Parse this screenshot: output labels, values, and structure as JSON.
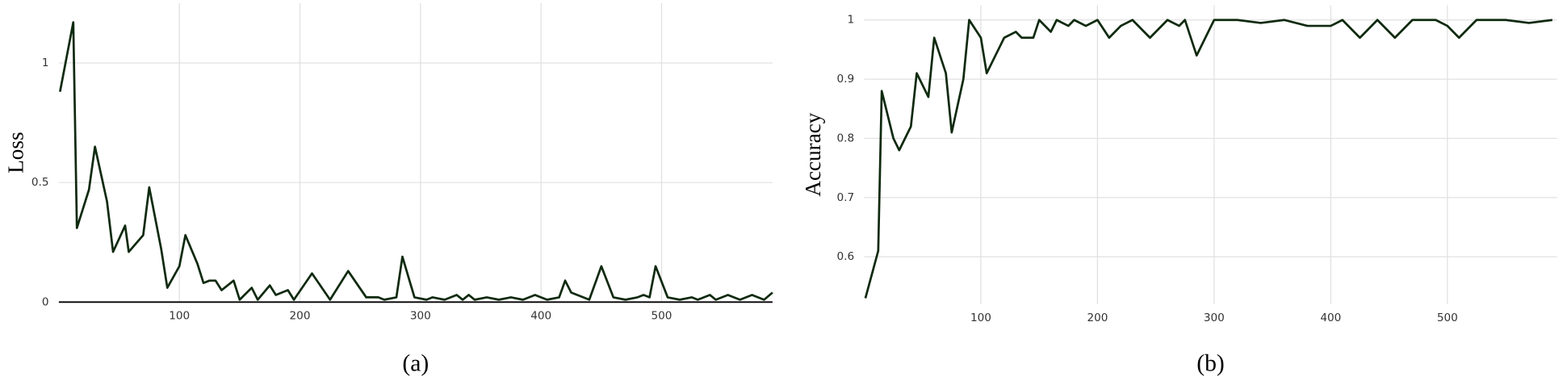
{
  "chart_data": [
    {
      "type": "line",
      "ylabel": "Loss",
      "caption": "(a)",
      "color": "#0f2a0f",
      "grid": true,
      "xlim": [
        0,
        592
      ],
      "ylim": [
        0,
        1.25
      ],
      "xticks": [
        100,
        200,
        300,
        400,
        500
      ],
      "yticks": [
        0,
        0.5,
        1
      ],
      "x": [
        1,
        12,
        15,
        25,
        30,
        40,
        45,
        55,
        58,
        70,
        75,
        85,
        90,
        100,
        105,
        115,
        120,
        125,
        130,
        135,
        145,
        150,
        160,
        165,
        175,
        180,
        190,
        195,
        210,
        225,
        240,
        255,
        265,
        270,
        280,
        285,
        295,
        305,
        310,
        320,
        330,
        335,
        340,
        345,
        355,
        365,
        375,
        385,
        395,
        405,
        415,
        420,
        425,
        435,
        440,
        450,
        460,
        470,
        480,
        485,
        490,
        495,
        505,
        515,
        525,
        530,
        540,
        545,
        555,
        565,
        575,
        585,
        592
      ],
      "values": [
        0.88,
        1.17,
        0.31,
        0.47,
        0.65,
        0.42,
        0.21,
        0.32,
        0.21,
        0.28,
        0.48,
        0.22,
        0.06,
        0.15,
        0.28,
        0.16,
        0.08,
        0.09,
        0.09,
        0.05,
        0.09,
        0.01,
        0.06,
        0.01,
        0.07,
        0.03,
        0.05,
        0.01,
        0.12,
        0.01,
        0.13,
        0.02,
        0.02,
        0.01,
        0.02,
        0.19,
        0.02,
        0.01,
        0.02,
        0.01,
        0.03,
        0.01,
        0.03,
        0.01,
        0.02,
        0.01,
        0.02,
        0.01,
        0.03,
        0.01,
        0.02,
        0.09,
        0.04,
        0.02,
        0.01,
        0.15,
        0.02,
        0.01,
        0.02,
        0.03,
        0.02,
        0.15,
        0.02,
        0.01,
        0.02,
        0.01,
        0.03,
        0.01,
        0.03,
        0.01,
        0.03,
        0.01,
        0.04
      ]
    },
    {
      "type": "line",
      "ylabel": "Accuracy",
      "caption": "(b)",
      "color": "#0f2a0f",
      "grid": true,
      "xlim": [
        0,
        594
      ],
      "ylim": [
        0.52,
        1.025
      ],
      "xticks": [
        100,
        200,
        300,
        400,
        500
      ],
      "yticks": [
        0.6,
        0.7,
        0.8,
        0.9,
        1
      ],
      "x": [
        1,
        12,
        15,
        25,
        30,
        40,
        45,
        55,
        60,
        70,
        75,
        85,
        90,
        100,
        105,
        115,
        120,
        130,
        135,
        145,
        150,
        160,
        165,
        175,
        180,
        190,
        200,
        210,
        220,
        230,
        245,
        260,
        270,
        275,
        285,
        295,
        300,
        320,
        340,
        360,
        380,
        400,
        410,
        425,
        440,
        455,
        470,
        490,
        500,
        510,
        525,
        550,
        570,
        590
      ],
      "values": [
        0.53,
        0.61,
        0.88,
        0.8,
        0.78,
        0.82,
        0.91,
        0.87,
        0.97,
        0.91,
        0.81,
        0.9,
        1.0,
        0.97,
        0.91,
        0.95,
        0.97,
        0.98,
        0.97,
        0.97,
        1.0,
        0.98,
        1.0,
        0.99,
        1.0,
        0.99,
        1.0,
        0.97,
        0.99,
        1.0,
        0.97,
        1.0,
        0.99,
        1.0,
        0.94,
        0.98,
        1.0,
        1.0,
        0.995,
        1.0,
        0.99,
        0.99,
        1.0,
        0.97,
        1.0,
        0.97,
        1.0,
        1.0,
        0.99,
        0.97,
        1.0,
        1.0,
        0.995,
        1.0
      ]
    }
  ]
}
